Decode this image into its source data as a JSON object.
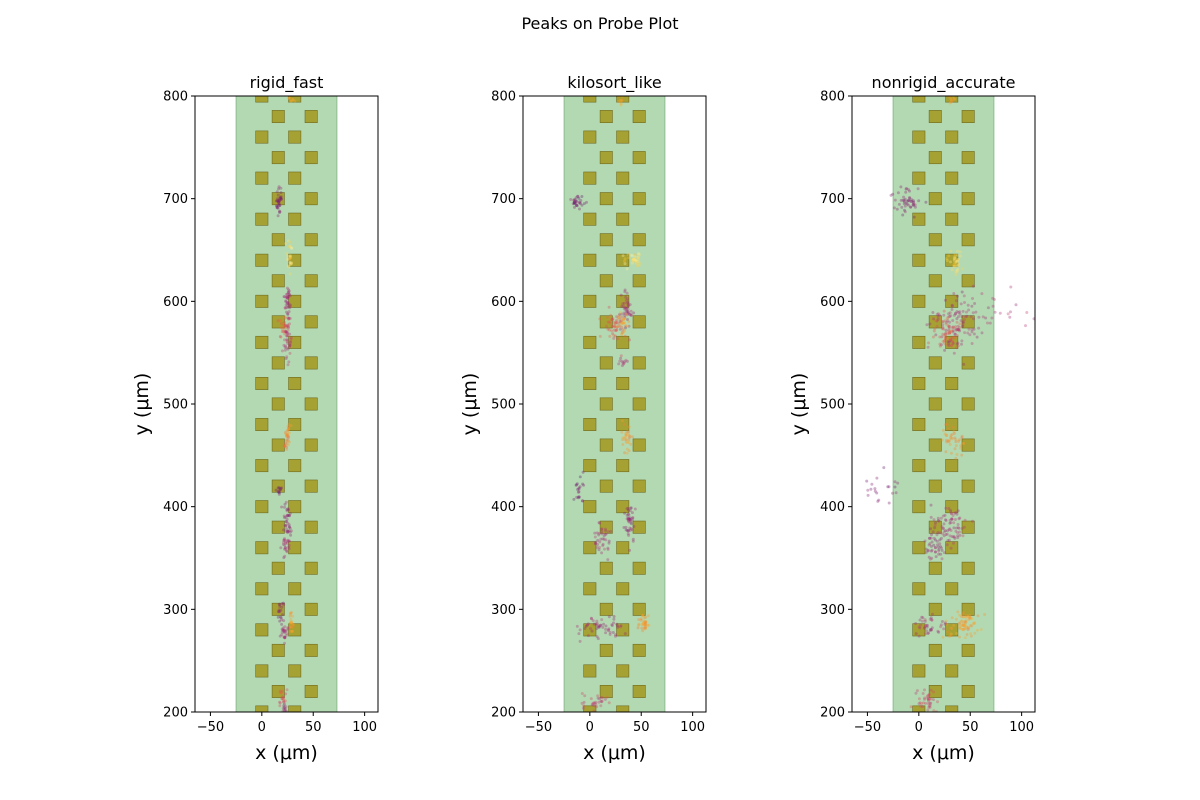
{
  "figure": {
    "title": "Peaks on Probe Plot"
  },
  "colors": {
    "probe_region": "#b3d9b3",
    "probe_region_edge": "#8fbc8f",
    "contact": "#a6a133",
    "contact_edge": "#6e6b22",
    "colormap": [
      "#3b0f70",
      "#7a1d6e",
      "#b5367a",
      "#e3514f",
      "#f98e2b",
      "#fbc92c",
      "#fcfdbf"
    ]
  },
  "chart_data": [
    {
      "type": "scatter",
      "title": "rigid_fast",
      "xlabel": "x ($\\mu m$)",
      "ylabel": "y ($\\mu m$)",
      "xlim": [
        -65,
        113
      ],
      "ylim": [
        200,
        800
      ],
      "xticks": [
        "-50",
        "0",
        "50",
        "100"
      ],
      "yticks": [
        "200",
        "300",
        "400",
        "500",
        "600",
        "700",
        "800"
      ],
      "probe_region": {
        "x": [
          -25,
          73
        ]
      },
      "contacts": {
        "x_columns": [
          0,
          16,
          32,
          48
        ],
        "y_start": 200,
        "y_end": 800,
        "y_step": 20,
        "size_um": 12
      },
      "clusters": [
        {
          "x": 28,
          "y": 797,
          "sx": 1.5,
          "sy": 2.5,
          "n": 8,
          "c": 0.72
        },
        {
          "x": 17,
          "y": 698,
          "sx": 1.5,
          "sy": 8,
          "n": 35,
          "c": 0.18
        },
        {
          "x": 27,
          "y": 645,
          "sx": 1.5,
          "sy": 10,
          "n": 25,
          "c": 0.9
        },
        {
          "x": 25,
          "y": 598,
          "sx": 2,
          "sy": 10,
          "n": 40,
          "c": 0.28
        },
        {
          "x": 22,
          "y": 575,
          "sx": 2.5,
          "sy": 6,
          "n": 30,
          "c": 0.55
        },
        {
          "x": 25,
          "y": 560,
          "sx": 2,
          "sy": 10,
          "n": 40,
          "c": 0.32
        },
        {
          "x": 26,
          "y": 473,
          "sx": 1.5,
          "sy": 6,
          "n": 20,
          "c": 0.68
        },
        {
          "x": 24,
          "y": 462,
          "sx": 1.5,
          "sy": 4,
          "n": 15,
          "c": 0.6
        },
        {
          "x": 17,
          "y": 418,
          "sx": 1.5,
          "sy": 4,
          "n": 12,
          "c": 0.15
        },
        {
          "x": 25,
          "y": 385,
          "sx": 2,
          "sy": 10,
          "n": 40,
          "c": 0.22
        },
        {
          "x": 23,
          "y": 362,
          "sx": 2,
          "sy": 5,
          "n": 25,
          "c": 0.3
        },
        {
          "x": 18,
          "y": 297,
          "sx": 1.5,
          "sy": 5,
          "n": 20,
          "c": 0.22
        },
        {
          "x": 29,
          "y": 285,
          "sx": 1.5,
          "sy": 6,
          "n": 22,
          "c": 0.7
        },
        {
          "x": 22,
          "y": 278,
          "sx": 2,
          "sy": 4,
          "n": 25,
          "c": 0.3
        },
        {
          "x": 20,
          "y": 215,
          "sx": 1.5,
          "sy": 5,
          "n": 18,
          "c": 0.45
        },
        {
          "x": 21,
          "y": 203,
          "sx": 1.5,
          "sy": 3,
          "n": 15,
          "c": 0.25
        }
      ]
    },
    {
      "type": "scatter",
      "title": "kilosort_like",
      "xlabel": "x ($\\mu m$)",
      "ylabel": "y ($\\mu m$)",
      "xlim": [
        -65,
        113
      ],
      "ylim": [
        200,
        800
      ],
      "xticks": [
        "-50",
        "0",
        "50",
        "100"
      ],
      "yticks": [
        "200",
        "300",
        "400",
        "500",
        "600",
        "700",
        "800"
      ],
      "probe_region": {
        "x": [
          -25,
          73
        ]
      },
      "contacts": {
        "x_columns": [
          0,
          16,
          32,
          48
        ],
        "y_start": 200,
        "y_end": 800,
        "y_step": 20,
        "size_um": 12
      },
      "clusters": [
        {
          "x": 30,
          "y": 796,
          "sx": 2,
          "sy": 2.5,
          "n": 10,
          "c": 0.72
        },
        {
          "x": -12,
          "y": 697,
          "sx": 3,
          "sy": 3.5,
          "n": 30,
          "c": 0.18
        },
        {
          "x": 42,
          "y": 640,
          "sx": 4,
          "sy": 4,
          "n": 35,
          "c": 0.9
        },
        {
          "x": 36,
          "y": 592,
          "sx": 3,
          "sy": 10,
          "n": 45,
          "c": 0.28
        },
        {
          "x": 25,
          "y": 575,
          "sx": 6,
          "sy": 8,
          "n": 55,
          "c": 0.5
        },
        {
          "x": 33,
          "y": 578,
          "sx": 3,
          "sy": 5,
          "n": 20,
          "c": 0.72
        },
        {
          "x": 33,
          "y": 542,
          "sx": 2,
          "sy": 3,
          "n": 12,
          "c": 0.3
        },
        {
          "x": 36,
          "y": 468,
          "sx": 3,
          "sy": 7,
          "n": 30,
          "c": 0.68
        },
        {
          "x": -10,
          "y": 418,
          "sx": 3,
          "sy": 7,
          "n": 20,
          "c": 0.15
        },
        {
          "x": 38,
          "y": 385,
          "sx": 3,
          "sy": 10,
          "n": 45,
          "c": 0.25
        },
        {
          "x": 12,
          "y": 368,
          "sx": 5,
          "sy": 8,
          "n": 40,
          "c": 0.3
        },
        {
          "x": 15,
          "y": 283,
          "sx": 12,
          "sy": 6,
          "n": 55,
          "c": 0.28
        },
        {
          "x": 52,
          "y": 286,
          "sx": 2.5,
          "sy": 5,
          "n": 35,
          "c": 0.7
        },
        {
          "x": 5,
          "y": 210,
          "sx": 6,
          "sy": 5,
          "n": 30,
          "c": 0.4
        }
      ]
    },
    {
      "type": "scatter",
      "title": "nonrigid_accurate",
      "xlabel": "x ($\\mu m$)",
      "ylabel": "y ($\\mu m$)",
      "xlim": [
        -65,
        113
      ],
      "ylim": [
        200,
        800
      ],
      "xticks": [
        "-50",
        "0",
        "50",
        "100"
      ],
      "yticks": [
        "200",
        "300",
        "400",
        "500",
        "600",
        "700",
        "800"
      ],
      "probe_region": {
        "x": [
          -25,
          73
        ]
      },
      "contacts": {
        "x_columns": [
          0,
          16,
          32,
          48
        ],
        "y_start": 200,
        "y_end": 800,
        "y_step": 20,
        "size_um": 12
      },
      "clusters": [
        {
          "x": 32,
          "y": 797,
          "sx": 2,
          "sy": 2.5,
          "n": 10,
          "c": 0.72
        },
        {
          "x": -10,
          "y": 698,
          "sx": 7,
          "sy": 6,
          "n": 50,
          "c": 0.2
        },
        {
          "x": 36,
          "y": 638,
          "sx": 4,
          "sy": 6,
          "n": 35,
          "c": 0.88
        },
        {
          "x": 35,
          "y": 580,
          "sx": 12,
          "sy": 14,
          "n": 110,
          "c": 0.3
        },
        {
          "x": 28,
          "y": 570,
          "sx": 7,
          "sy": 8,
          "n": 60,
          "c": 0.5
        },
        {
          "x": 80,
          "y": 590,
          "sx": 15,
          "sy": 10,
          "n": 20,
          "c": 0.32
        },
        {
          "x": 33,
          "y": 465,
          "sx": 6,
          "sy": 6,
          "n": 40,
          "c": 0.66
        },
        {
          "x": -35,
          "y": 415,
          "sx": 10,
          "sy": 8,
          "n": 20,
          "c": 0.18
        },
        {
          "x": 30,
          "y": 383,
          "sx": 9,
          "sy": 10,
          "n": 75,
          "c": 0.3
        },
        {
          "x": 15,
          "y": 365,
          "sx": 6,
          "sy": 8,
          "n": 45,
          "c": 0.25
        },
        {
          "x": 10,
          "y": 285,
          "sx": 8,
          "sy": 6,
          "n": 40,
          "c": 0.3
        },
        {
          "x": 45,
          "y": 285,
          "sx": 8,
          "sy": 7,
          "n": 75,
          "c": 0.7
        },
        {
          "x": 8,
          "y": 212,
          "sx": 6,
          "sy": 6,
          "n": 40,
          "c": 0.42
        }
      ]
    }
  ]
}
